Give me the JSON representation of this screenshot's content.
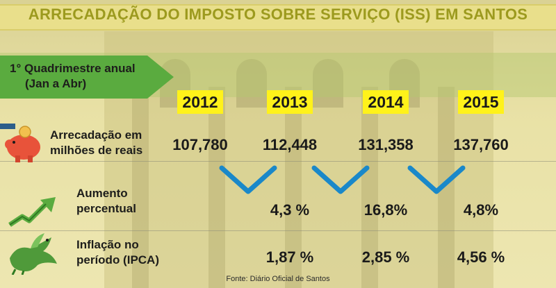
{
  "title": "ARRECADAÇÃO DO IMPOSTO SOBRE SERVIÇO (ISS) EM SANTOS",
  "period_label_line1": "1° Quadrimestre anual",
  "period_label_line2": "(Jan a Abr)",
  "rows": {
    "revenue_line1": "Arrecadação em",
    "revenue_line2": "milhões de reais",
    "increase_line1": "Aumento",
    "increase_line2": "percentual",
    "inflation_line1": "Inflação no",
    "inflation_line2": "período (IPCA)"
  },
  "source": "Fonte: Diário Oficial de Santos",
  "icons": {
    "revenue": "piggy-bank-icon",
    "increase": "rising-arrow-icon",
    "inflation": "dragon-icon",
    "change": "check-chevron-icon"
  },
  "colors": {
    "title": "#9c9a1e",
    "year_highlight": "#fff21a",
    "label_arrow": "#5aab3f",
    "check": "#1a88c9"
  },
  "chart_data": {
    "type": "table",
    "title": "ARRECADAÇÃO DO IMPOSTO SOBRE SERVIÇO (ISS) EM SANTOS",
    "columns": [
      "2012",
      "2013",
      "2014",
      "2015"
    ],
    "rows": [
      {
        "label": "Arrecadação em milhões de reais",
        "values": [
          "107,780",
          "112,448",
          "131,358",
          "137,760"
        ]
      },
      {
        "label": "Aumento percentual",
        "values": [
          "",
          "4,3 %",
          "16,8%",
          "4,8%"
        ]
      },
      {
        "label": "Inflação no período (IPCA)",
        "values": [
          "",
          "1,87 %",
          "2,85 %",
          "4,56 %"
        ]
      }
    ]
  }
}
